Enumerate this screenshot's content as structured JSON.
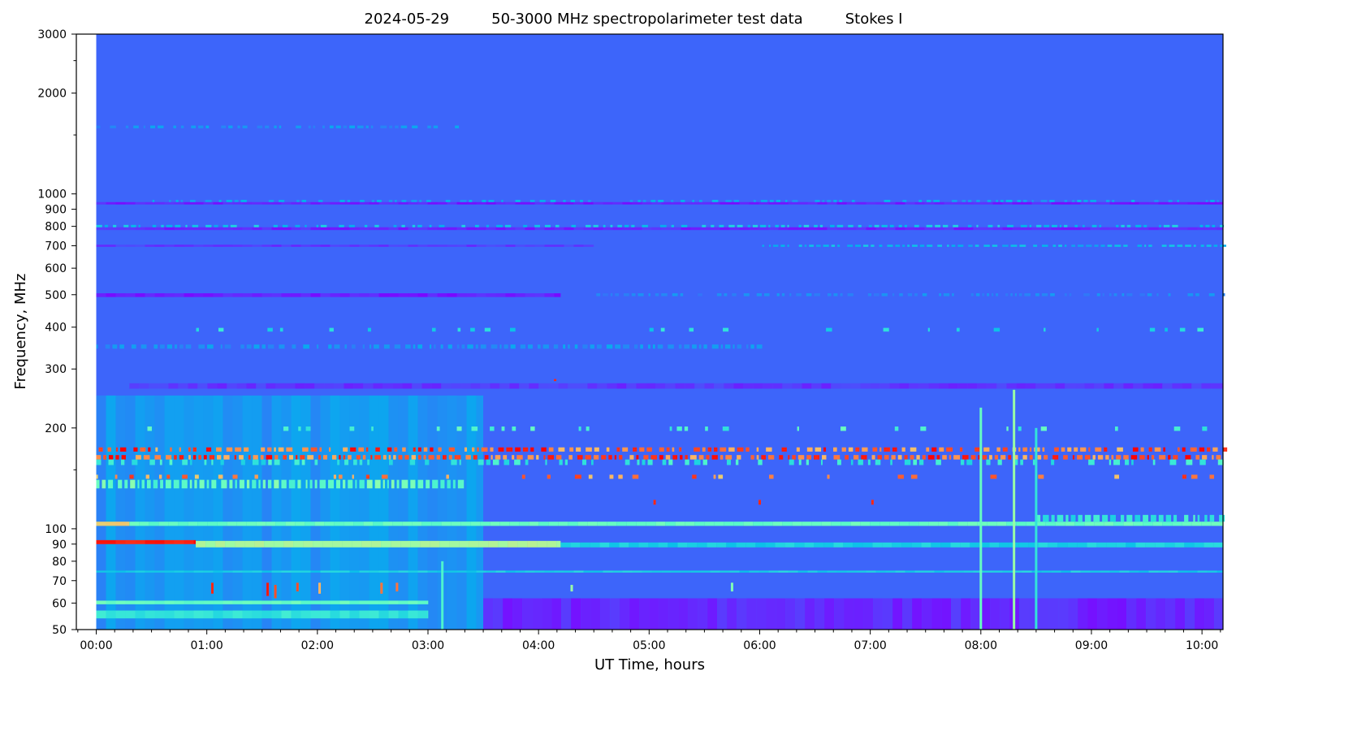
{
  "title": {
    "date": "2024-05-29",
    "description": "50-3000 MHz spectropolarimeter test data",
    "parameter": "Stokes I"
  },
  "chart_data": {
    "type": "heatmap",
    "xlabel": "UT Time, hours",
    "ylabel": "Frequency, MHz",
    "x_unit": "hours",
    "xlim": [
      -0.18,
      10.19
    ],
    "data_time_range": [
      0,
      10.19
    ],
    "ylim": [
      50,
      3000
    ],
    "yscale": "log",
    "colormap": "rainbow",
    "grid": false,
    "legend": "none",
    "x_ticks": [
      {
        "value": 0,
        "label": "00:00"
      },
      {
        "value": 1,
        "label": "01:00"
      },
      {
        "value": 2,
        "label": "02:00"
      },
      {
        "value": 3,
        "label": "03:00"
      },
      {
        "value": 4,
        "label": "04:00"
      },
      {
        "value": 5,
        "label": "05:00"
      },
      {
        "value": 6,
        "label": "06:00"
      },
      {
        "value": 7,
        "label": "07:00"
      },
      {
        "value": 8,
        "label": "08:00"
      },
      {
        "value": 9,
        "label": "09:00"
      },
      {
        "value": 10,
        "label": "10:00"
      }
    ],
    "y_ticks": [
      {
        "value": 50,
        "label": "50"
      },
      {
        "value": 60,
        "label": "60"
      },
      {
        "value": 70,
        "label": "70"
      },
      {
        "value": 80,
        "label": "80"
      },
      {
        "value": 90,
        "label": "90"
      },
      {
        "value": 100,
        "label": "100"
      },
      {
        "value": 200,
        "label": "200"
      },
      {
        "value": 300,
        "label": "300"
      },
      {
        "value": 400,
        "label": "400"
      },
      {
        "value": 500,
        "label": "500"
      },
      {
        "value": 600,
        "label": "600"
      },
      {
        "value": 700,
        "label": "700"
      },
      {
        "value": 800,
        "label": "800"
      },
      {
        "value": 900,
        "label": "900"
      },
      {
        "value": 1000,
        "label": "1000"
      },
      {
        "value": 2000,
        "label": "2000"
      },
      {
        "value": 3000,
        "label": "3000"
      }
    ],
    "y_minor_ticks": [
      150,
      1500,
      2500
    ],
    "background_level": 0.13,
    "bands": [
      {
        "f1": 50,
        "f2": 250,
        "t1": 0,
        "t2": 3.5,
        "level": 0.2,
        "fill": 1
      },
      {
        "f1": 50,
        "f2": 62,
        "t1": 3.5,
        "t2": 10.19,
        "level": 0.05,
        "fill": 1
      },
      {
        "f1": 1570,
        "f2": 1600,
        "t1": 0,
        "t2": 3.3,
        "level": 0.22,
        "fill": 0.5
      },
      {
        "f1": 930,
        "f2": 945,
        "t1": 0,
        "t2": 10.19,
        "level": 0.04,
        "fill": 1
      },
      {
        "f1": 945,
        "f2": 960,
        "t1": 0.2,
        "t2": 10.19,
        "level": 0.25,
        "fill": 0.35
      },
      {
        "f1": 780,
        "f2": 795,
        "t1": 0,
        "t2": 10.19,
        "level": 0.05,
        "fill": 1
      },
      {
        "f1": 795,
        "f2": 808,
        "t1": 0,
        "t2": 10.19,
        "level": 0.3,
        "fill": 0.4
      },
      {
        "f1": 695,
        "f2": 705,
        "t1": 0,
        "t2": 4.5,
        "level": 0.07,
        "fill": 1
      },
      {
        "f1": 695,
        "f2": 705,
        "t1": 6,
        "t2": 10.19,
        "level": 0.28,
        "fill": 0.7
      },
      {
        "f1": 492,
        "f2": 505,
        "t1": 0,
        "t2": 4.2,
        "level": 0.04,
        "fill": 1
      },
      {
        "f1": 495,
        "f2": 505,
        "t1": 4.5,
        "t2": 10.19,
        "level": 0.2,
        "fill": 0.5
      },
      {
        "f1": 388,
        "f2": 398,
        "t1": 0,
        "t2": 10.19,
        "level": 0.35,
        "fill": 0.06
      },
      {
        "f1": 345,
        "f2": 355,
        "t1": 0,
        "t2": 6,
        "level": 0.22,
        "fill": 0.6
      },
      {
        "f1": 262,
        "f2": 272,
        "t1": 0.3,
        "t2": 10.19,
        "level": 0.07,
        "fill": 1
      },
      {
        "f1": 196,
        "f2": 202,
        "t1": 0,
        "t2": 10.19,
        "level": 0.45,
        "fill": 0.06
      },
      {
        "f1": 170,
        "f2": 175,
        "t1": 0,
        "t2": 10.19,
        "level": 0.97,
        "fill": 0.55
      },
      {
        "f1": 161,
        "f2": 166,
        "t1": 0,
        "t2": 10.19,
        "level": 0.98,
        "fill": 0.8
      },
      {
        "f1": 155,
        "f2": 161,
        "t1": 0,
        "t2": 10.19,
        "level": 0.4,
        "fill": 0.3
      },
      {
        "f1": 141,
        "f2": 145,
        "t1": 0,
        "t2": 10.19,
        "level": 0.9,
        "fill": 0.12
      },
      {
        "f1": 132,
        "f2": 140,
        "t1": 0,
        "t2": 3.3,
        "level": 0.5,
        "fill": 0.95
      },
      {
        "f1": 102,
        "f2": 105,
        "t1": 0,
        "t2": 0.3,
        "level": 0.72,
        "fill": 1
      },
      {
        "f1": 102,
        "f2": 105,
        "t1": 0.3,
        "t2": 10.19,
        "level": 0.45,
        "fill": 1
      },
      {
        "f1": 105,
        "f2": 110,
        "t1": 8.5,
        "t2": 10.19,
        "level": 0.4,
        "fill": 0.8
      },
      {
        "f1": 90,
        "f2": 92.5,
        "t1": 0,
        "t2": 0.9,
        "level": 0.97,
        "fill": 1
      },
      {
        "f1": 88,
        "f2": 92,
        "t1": 0.9,
        "t2": 4.2,
        "level": 0.58,
        "fill": 1
      },
      {
        "f1": 88,
        "f2": 91,
        "t1": 4.2,
        "t2": 10.19,
        "level": 0.3,
        "fill": 1
      },
      {
        "f1": 74,
        "f2": 75,
        "t1": 0,
        "t2": 10.19,
        "level": 0.3,
        "fill": 1
      },
      {
        "f1": 59.5,
        "f2": 61,
        "t1": 0,
        "t2": 3,
        "level": 0.45,
        "fill": 1
      },
      {
        "f1": 54,
        "f2": 57,
        "t1": 0,
        "t2": 3,
        "level": 0.35,
        "fill": 1
      }
    ],
    "bursts": [
      {
        "t": 1.05,
        "f1": 64,
        "f2": 69,
        "level": 0.95
      },
      {
        "t": 1.55,
        "f1": 63,
        "f2": 69,
        "level": 0.97
      },
      {
        "t": 1.62,
        "f1": 62,
        "f2": 68,
        "level": 0.9
      },
      {
        "t": 1.82,
        "f1": 65,
        "f2": 69,
        "level": 0.9
      },
      {
        "t": 2.02,
        "f1": 64,
        "f2": 69,
        "level": 0.75
      },
      {
        "t": 2.58,
        "f1": 64,
        "f2": 69,
        "level": 0.85
      },
      {
        "t": 2.72,
        "f1": 65,
        "f2": 69,
        "level": 0.85
      },
      {
        "t": 4.3,
        "f1": 65,
        "f2": 68,
        "level": 0.55
      },
      {
        "t": 5.75,
        "f1": 65,
        "f2": 69,
        "level": 0.5
      },
      {
        "t": 4.15,
        "f1": 276,
        "f2": 280,
        "level": 0.95
      },
      {
        "t": 5.05,
        "f1": 118,
        "f2": 122,
        "level": 0.95
      },
      {
        "t": 6.0,
        "f1": 118,
        "f2": 122,
        "level": 0.95
      },
      {
        "t": 7.02,
        "f1": 118,
        "f2": 122,
        "level": 0.95
      },
      {
        "t": 8.0,
        "f1": 50,
        "f2": 230,
        "level": 0.45
      },
      {
        "t": 8.3,
        "f1": 50,
        "f2": 260,
        "level": 0.55
      },
      {
        "t": 8.5,
        "f1": 50,
        "f2": 200,
        "level": 0.35
      },
      {
        "t": 3.13,
        "f1": 50,
        "f2": 80,
        "level": 0.4
      }
    ]
  }
}
